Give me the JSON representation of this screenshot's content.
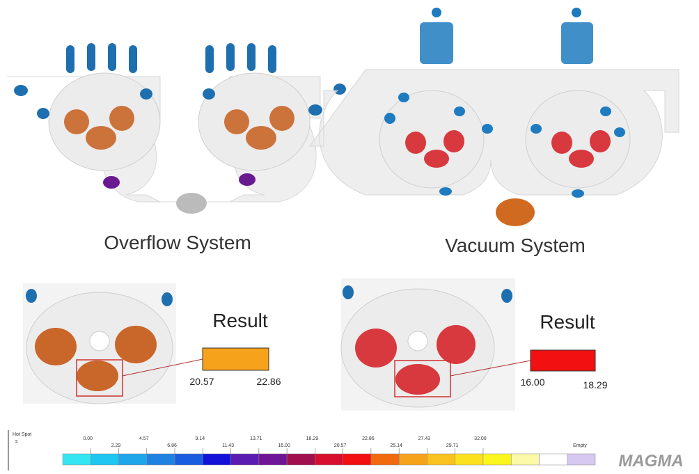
{
  "panels": [
    {
      "caption": "Overflow System",
      "result_title": "Result",
      "range": [
        "20.57",
        "22.86"
      ],
      "color": "#f7a21b"
    },
    {
      "caption": "Vacuum System",
      "result_title": "Result",
      "range": [
        "16.00",
        "18.29"
      ],
      "color": "#f21010"
    }
  ],
  "legend": {
    "title": [
      "Hot Spot",
      "s"
    ],
    "ticks": [
      "0.00",
      "2.29",
      "4.57",
      "6.86",
      "9.14",
      "11.43",
      "13.71",
      "16.00",
      "18.29",
      "20.57",
      "22.86",
      "25.14",
      "27.43",
      "29.71",
      "32.00"
    ],
    "end_label": "Empty",
    "colors": [
      "#35e6f2",
      "#1ec6f0",
      "#1ea6ea",
      "#1f82e2",
      "#1a5ee0",
      "#1212d8",
      "#5a1cb0",
      "#6e1696",
      "#a0104e",
      "#d81030",
      "#f21010",
      "#f26a10",
      "#f7a21b",
      "#f9c21e",
      "#fbe21e",
      "#fbf51e",
      "#fbf8a8",
      "#ffffff",
      "#d6c8f0"
    ]
  },
  "logo": "MAGMA"
}
